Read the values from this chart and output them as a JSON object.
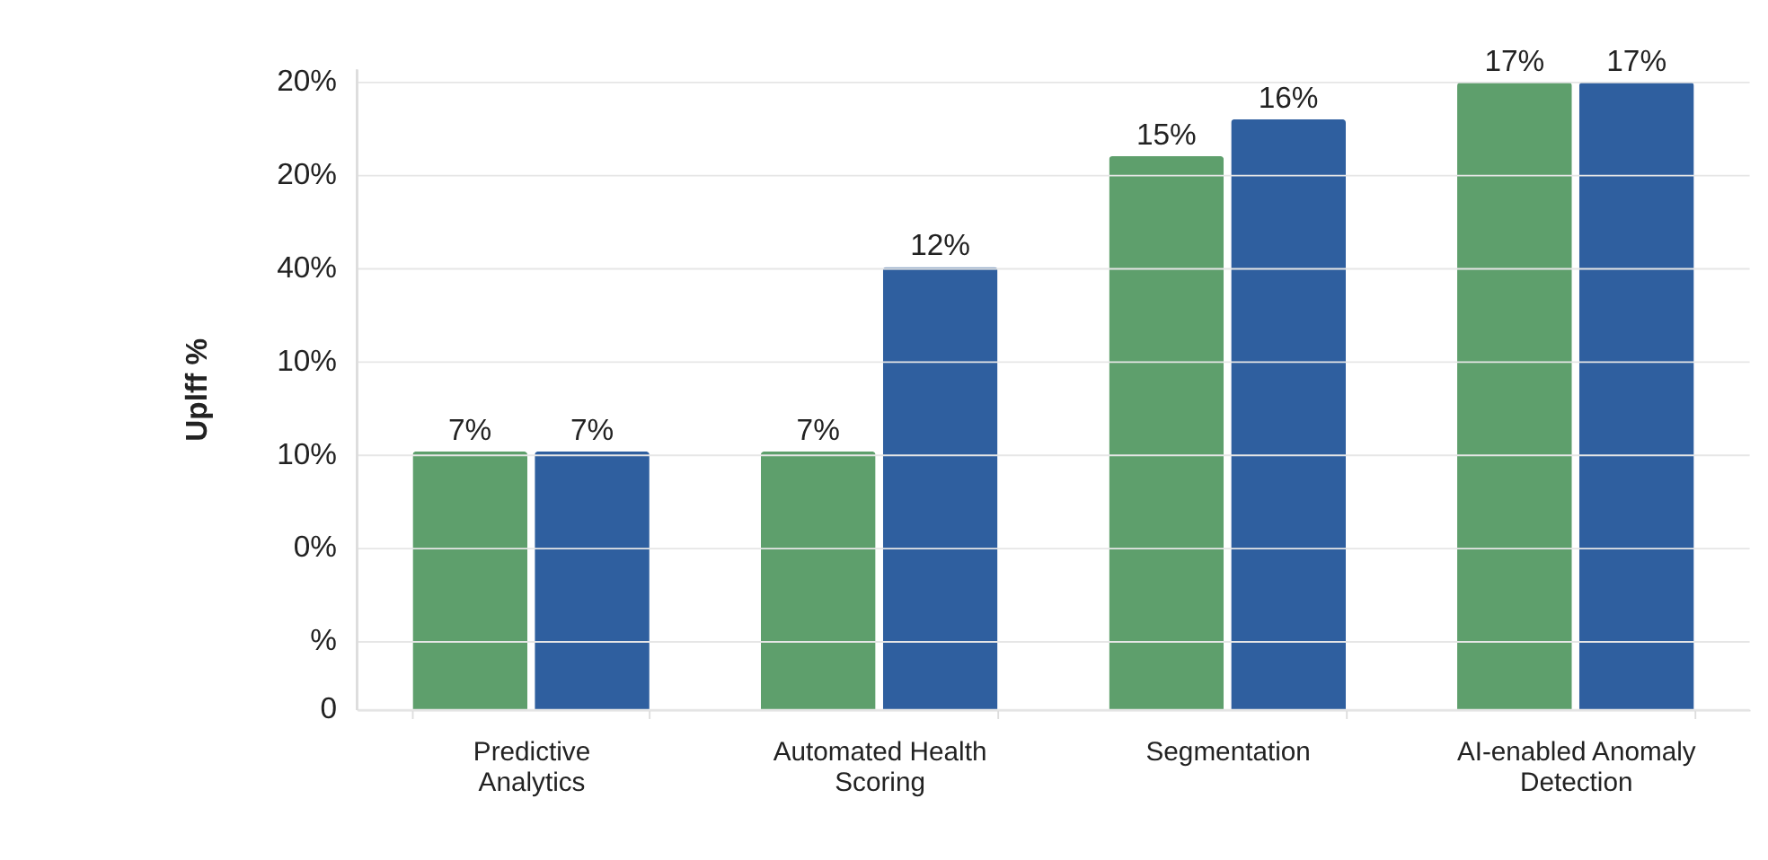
{
  "chart_data": {
    "type": "bar",
    "ylabel": "Uplff %",
    "categories": [
      "Predictive Analytics",
      "Automated Health Scoring",
      "Segmentation",
      "AI-enabled Anomaly Detection"
    ],
    "series": [
      {
        "color": "#5e9f6c",
        "values": [
          7,
          7,
          15,
          17
        ],
        "value_labels": [
          "7%",
          "7%",
          "15%",
          "17%"
        ]
      },
      {
        "color": "#2f5f9f",
        "values": [
          7,
          12,
          16,
          17
        ],
        "value_labels": [
          "7%",
          "12%",
          "16%",
          "17%"
        ]
      }
    ],
    "annotations": [
      "0",
      "%",
      "0%",
      "10%",
      "10%",
      "40%",
      "20%",
      "20%"
    ],
    "grid": "y",
    "legend": false
  }
}
